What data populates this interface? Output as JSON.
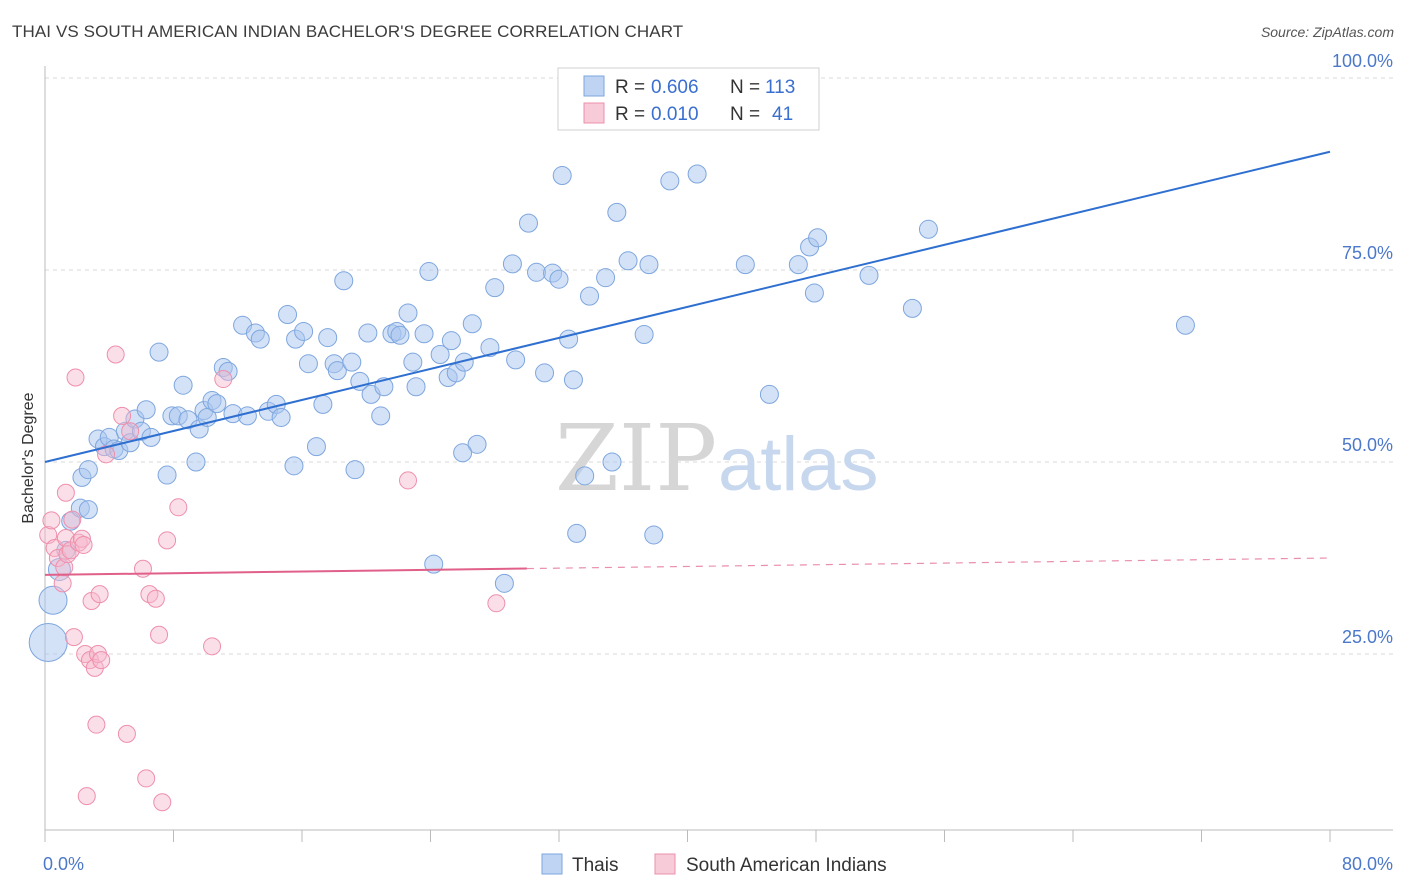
{
  "title": "THAI VS SOUTH AMERICAN INDIAN BACHELOR'S DEGREE CORRELATION CHART",
  "source": "Source: ZipAtlas.com",
  "watermark": {
    "zip": "ZIP",
    "atlas": "atlas"
  },
  "colors": {
    "thai_fill": "#a9c6ef",
    "thai_stroke": "#7ea6de",
    "thai_line": "#2e6fd0",
    "sa_fill": "#f6b9cc",
    "sa_stroke": "#ee8fab",
    "sa_line": "#e0608a",
    "grid": "#d9d9d9",
    "tick_text": "#4b78c9"
  },
  "legend": {
    "rows": [
      {
        "r_label": "R =",
        "r_value": "0.606",
        "n_label": "N =",
        "n_value": "113"
      },
      {
        "r_label": "R =",
        "r_value": "0.010",
        "n_label": "N =",
        "n_value": "41"
      }
    ]
  },
  "bottom_legend": [
    "Thais",
    "South American Indians"
  ],
  "chart_data": {
    "type": "scatter",
    "title": "THAI VS SOUTH AMERICAN INDIAN BACHELOR'S DEGREE CORRELATION CHART",
    "xlabel": "",
    "ylabel": "Bachelor's Degree",
    "xlim": [
      0,
      80
    ],
    "ylim": [
      0,
      105
    ],
    "x_tick_labels": [
      "0.0%",
      "80.0%"
    ],
    "y_ticks": [
      25,
      50,
      75,
      100
    ],
    "y_tick_labels": [
      "25.0%",
      "50.0%",
      "75.0%",
      "100.0%"
    ],
    "legend_position": "top-center",
    "series": [
      {
        "name": "Thais",
        "r": 0.606,
        "n": 113,
        "trend": {
          "x": [
            0,
            80
          ],
          "y": [
            50,
            90.4
          ],
          "dashed_from": null
        },
        "points": [
          [
            0.2,
            26.5
          ],
          [
            0.5,
            32
          ],
          [
            0.9,
            36
          ],
          [
            1.3,
            38.5
          ],
          [
            1.6,
            42.3
          ],
          [
            2.2,
            44
          ],
          [
            2.7,
            43.8
          ],
          [
            2.3,
            48
          ],
          [
            2.7,
            49
          ],
          [
            3.3,
            53
          ],
          [
            3.7,
            52
          ],
          [
            4.0,
            53.2
          ],
          [
            4.3,
            51.7
          ],
          [
            4.6,
            51.5
          ],
          [
            5.0,
            54
          ],
          [
            5.3,
            52.5
          ],
          [
            5.6,
            55.6
          ],
          [
            6.0,
            54
          ],
          [
            6.3,
            56.8
          ],
          [
            6.6,
            53.2
          ],
          [
            7.1,
            64.3
          ],
          [
            7.6,
            48.3
          ],
          [
            7.9,
            56
          ],
          [
            8.3,
            56
          ],
          [
            8.6,
            60
          ],
          [
            8.9,
            55.5
          ],
          [
            9.4,
            50
          ],
          [
            9.6,
            54.3
          ],
          [
            9.9,
            56.7
          ],
          [
            10.1,
            55.8
          ],
          [
            10.4,
            58
          ],
          [
            10.7,
            57.6
          ],
          [
            11.1,
            62.3
          ],
          [
            11.4,
            61.8
          ],
          [
            11.7,
            56.3
          ],
          [
            12.3,
            67.8
          ],
          [
            12.6,
            56
          ],
          [
            13.1,
            66.8
          ],
          [
            13.4,
            66
          ],
          [
            13.9,
            56.6
          ],
          [
            14.4,
            57.5
          ],
          [
            14.7,
            55.8
          ],
          [
            15.1,
            69.2
          ],
          [
            15.5,
            49.5
          ],
          [
            15.6,
            66
          ],
          [
            16.1,
            67
          ],
          [
            16.4,
            62.8
          ],
          [
            16.9,
            52
          ],
          [
            17.3,
            57.5
          ],
          [
            17.6,
            66.2
          ],
          [
            18.0,
            62.8
          ],
          [
            18.2,
            61.9
          ],
          [
            18.6,
            73.6
          ],
          [
            19.1,
            63
          ],
          [
            19.3,
            49
          ],
          [
            19.6,
            60.5
          ],
          [
            20.1,
            66.8
          ],
          [
            20.3,
            58.8
          ],
          [
            20.9,
            56
          ],
          [
            21.1,
            59.8
          ],
          [
            21.6,
            66.7
          ],
          [
            21.9,
            67
          ],
          [
            22.1,
            66.5
          ],
          [
            22.6,
            69.4
          ],
          [
            22.9,
            63
          ],
          [
            23.1,
            59.8
          ],
          [
            23.6,
            66.7
          ],
          [
            23.9,
            74.8
          ],
          [
            24.2,
            36.7
          ],
          [
            24.6,
            64
          ],
          [
            25.1,
            61
          ],
          [
            25.3,
            65.8
          ],
          [
            25.6,
            61.6
          ],
          [
            26.1,
            63
          ],
          [
            26.6,
            68
          ],
          [
            26.9,
            52.3
          ],
          [
            27.7,
            64.9
          ],
          [
            28.0,
            72.7
          ],
          [
            28.6,
            34.2
          ],
          [
            29.1,
            75.8
          ],
          [
            29.3,
            63.3
          ],
          [
            30.1,
            81.1
          ],
          [
            30.6,
            74.7
          ],
          [
            31.1,
            61.6
          ],
          [
            31.6,
            74.6
          ],
          [
            32.0,
            73.8
          ],
          [
            32.2,
            87.3
          ],
          [
            32.6,
            66
          ],
          [
            32.9,
            60.7
          ],
          [
            33.1,
            40.7
          ],
          [
            33.6,
            48.2
          ],
          [
            33.9,
            71.6
          ],
          [
            34.9,
            74
          ],
          [
            35.3,
            50
          ],
          [
            35.6,
            82.5
          ],
          [
            36.3,
            76.2
          ],
          [
            37.3,
            66.6
          ],
          [
            37.6,
            75.7
          ],
          [
            37.9,
            40.5
          ],
          [
            38.9,
            86.6
          ],
          [
            40.6,
            87.5
          ],
          [
            43.6,
            75.7
          ],
          [
            45.1,
            58.8
          ],
          [
            46.9,
            75.7
          ],
          [
            47.6,
            78
          ],
          [
            47.9,
            72
          ],
          [
            48.1,
            79.2
          ],
          [
            51.3,
            74.3
          ],
          [
            54.0,
            70
          ],
          [
            55.0,
            80.3
          ],
          [
            71.0,
            67.8
          ],
          [
            26.0,
            51.2
          ]
        ]
      },
      {
        "name": "South American Indians",
        "r": 0.01,
        "n": 41,
        "trend": {
          "x": [
            0,
            80
          ],
          "y": [
            35.3,
            37.5
          ],
          "dashed_from": 30
        },
        "points": [
          [
            0.2,
            40.5
          ],
          [
            0.4,
            42.4
          ],
          [
            0.6,
            38.8
          ],
          [
            0.8,
            37.5
          ],
          [
            1.1,
            34.2
          ],
          [
            1.2,
            36.3
          ],
          [
            1.3,
            40.1
          ],
          [
            1.4,
            38
          ],
          [
            1.6,
            38.5
          ],
          [
            1.7,
            42.5
          ],
          [
            1.3,
            46
          ],
          [
            1.8,
            27.2
          ],
          [
            1.9,
            61
          ],
          [
            2.1,
            39.5
          ],
          [
            2.3,
            40
          ],
          [
            2.4,
            39.2
          ],
          [
            2.5,
            25
          ],
          [
            2.6,
            6.5
          ],
          [
            2.8,
            24.2
          ],
          [
            2.9,
            31.9
          ],
          [
            3.1,
            23.2
          ],
          [
            3.2,
            15.8
          ],
          [
            3.3,
            25
          ],
          [
            3.4,
            32.8
          ],
          [
            3.5,
            24.2
          ],
          [
            3.8,
            51
          ],
          [
            4.4,
            64
          ],
          [
            4.8,
            56
          ],
          [
            5.1,
            14.6
          ],
          [
            5.3,
            54
          ],
          [
            6.1,
            36.1
          ],
          [
            6.3,
            8.8
          ],
          [
            6.5,
            32.8
          ],
          [
            6.9,
            32.2
          ],
          [
            7.1,
            27.5
          ],
          [
            7.3,
            5.7
          ],
          [
            7.6,
            39.8
          ],
          [
            8.3,
            44.1
          ],
          [
            10.4,
            26
          ],
          [
            11.1,
            60.8
          ],
          [
            22.6,
            47.6
          ],
          [
            28.1,
            31.6
          ]
        ]
      }
    ]
  }
}
